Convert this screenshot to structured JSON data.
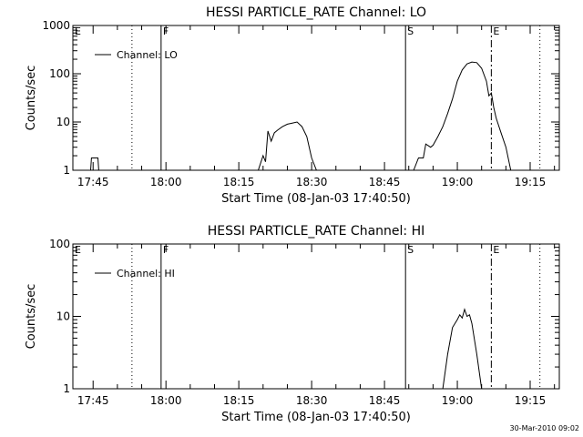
{
  "footer_text": "30-Mar-2010 09:02",
  "chart_data": [
    {
      "type": "line",
      "title": "HESSI PARTICLE_RATE Channel: LO",
      "xlabel": "Start Time (08-Jan-03 17:40:50)",
      "ylabel": "Counts/sec",
      "yscale": "log",
      "ylim": [
        1,
        1000
      ],
      "xlim": [
        "17:40:50",
        "19:21:00"
      ],
      "x_ticks": [
        "17:45",
        "18:00",
        "18:15",
        "18:30",
        "18:45",
        "19:00",
        "19:15"
      ],
      "y_ticks": [
        "1",
        "10",
        "100",
        "1000"
      ],
      "grid": false,
      "legend": {
        "placement": "top-left",
        "entries": [
          "Channel: LO"
        ]
      },
      "markers": [
        {
          "label": "",
          "time": "17:53:00",
          "style": "dotted"
        },
        {
          "label": "F",
          "time": "17:59:00",
          "style": "solid"
        },
        {
          "label": "S",
          "time": "18:49:20",
          "style": "solid"
        },
        {
          "label": "E",
          "time": "19:07:00",
          "style": "dashdot"
        },
        {
          "label": "",
          "time": "19:17:00",
          "style": "dotted"
        }
      ],
      "corner_label": "E",
      "series": [
        {
          "points": [
            [
              "17:44:30",
              1
            ],
            [
              "17:44:40",
              1.8
            ],
            [
              "17:46:00",
              1.8
            ],
            [
              "17:46:10",
              1
            ],
            [
              "18:19:00",
              1
            ],
            [
              "18:20:00",
              2
            ],
            [
              "18:20:30",
              1.5
            ],
            [
              "18:21:00",
              6.5
            ],
            [
              "18:21:40",
              4
            ],
            [
              "18:22:20",
              6
            ],
            [
              "18:23:00",
              6.8
            ],
            [
              "18:24:00",
              8
            ],
            [
              "18:25:00",
              9
            ],
            [
              "18:26:00",
              9.5
            ],
            [
              "18:27:00",
              10
            ],
            [
              "18:28:00",
              8
            ],
            [
              "18:29:00",
              5
            ],
            [
              "18:30:00",
              1.8
            ],
            [
              "18:31:00",
              1
            ],
            [
              "18:51:00",
              1
            ],
            [
              "18:52:00",
              1.8
            ],
            [
              "18:53:00",
              1.8
            ],
            [
              "18:53:30",
              3.5
            ],
            [
              "18:54:30",
              3
            ],
            [
              "18:55:00",
              3.3
            ],
            [
              "18:56:00",
              5
            ],
            [
              "18:57:00",
              8
            ],
            [
              "18:58:00",
              15
            ],
            [
              "18:59:00",
              30
            ],
            [
              "19:00:00",
              70
            ],
            [
              "19:01:00",
              120
            ],
            [
              "19:02:00",
              160
            ],
            [
              "19:03:00",
              175
            ],
            [
              "19:04:00",
              170
            ],
            [
              "19:05:00",
              130
            ],
            [
              "19:06:00",
              70
            ],
            [
              "19:06:30",
              35
            ],
            [
              "19:07:00",
              40
            ],
            [
              "19:07:30",
              20
            ],
            [
              "19:08:00",
              12
            ],
            [
              "19:09:00",
              6
            ],
            [
              "19:10:00",
              3
            ],
            [
              "19:11:00",
              1
            ]
          ]
        }
      ]
    },
    {
      "type": "line",
      "title": "HESSI PARTICLE_RATE Channel: HI",
      "xlabel": "Start Time (08-Jan-03 17:40:50)",
      "ylabel": "Counts/sec",
      "yscale": "log",
      "ylim": [
        1,
        100
      ],
      "xlim": [
        "17:40:50",
        "19:21:00"
      ],
      "x_ticks": [
        "17:45",
        "18:00",
        "18:15",
        "18:30",
        "18:45",
        "19:00",
        "19:15"
      ],
      "y_ticks": [
        "1",
        "10",
        "100"
      ],
      "grid": false,
      "legend": {
        "placement": "top-left",
        "entries": [
          "Channel: HI"
        ]
      },
      "markers": [
        {
          "label": "",
          "time": "17:53:00",
          "style": "dotted"
        },
        {
          "label": "F",
          "time": "17:59:00",
          "style": "solid"
        },
        {
          "label": "S",
          "time": "18:49:20",
          "style": "solid"
        },
        {
          "label": "E",
          "time": "19:07:00",
          "style": "dashdot"
        },
        {
          "label": "",
          "time": "19:17:00",
          "style": "dotted"
        }
      ],
      "corner_label": "E",
      "series": [
        {
          "points": [
            [
              "18:57:00",
              1
            ],
            [
              "18:58:00",
              3
            ],
            [
              "18:59:00",
              7
            ],
            [
              "19:00:00",
              9
            ],
            [
              "19:00:30",
              10.5
            ],
            [
              "19:01:00",
              9.5
            ],
            [
              "19:01:30",
              12.5
            ],
            [
              "19:02:00",
              10
            ],
            [
              "19:02:30",
              10.5
            ],
            [
              "19:03:00",
              8
            ],
            [
              "19:04:00",
              3
            ],
            [
              "19:05:00",
              1
            ]
          ]
        }
      ]
    }
  ]
}
